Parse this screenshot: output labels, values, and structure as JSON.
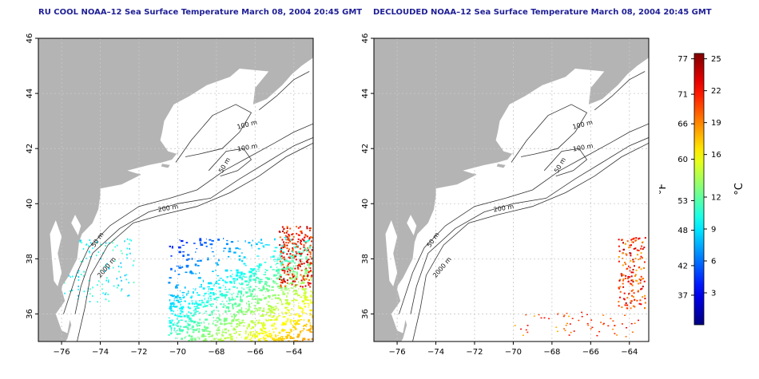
{
  "panels": [
    {
      "id": "left",
      "title": "RU COOL NOAA–12 Sea Surface Temperature March 08, 2004 20:45 GMT",
      "sst": "full"
    },
    {
      "id": "right",
      "title": "DECLOUDED NOAA–12 Sea Surface Temperature March 08, 2004 20:45 GMT",
      "sst": "sparse"
    }
  ],
  "axes": {
    "lon_ticks": [
      "−76",
      "−74",
      "−72",
      "−70",
      "−68",
      "−66",
      "−64"
    ],
    "lon_values": [
      -76,
      -74,
      -72,
      -70,
      -68,
      -66,
      -64
    ],
    "lat_ticks": [
      "36",
      "38",
      "40",
      "42",
      "44",
      "46"
    ],
    "lat_values": [
      36,
      38,
      40,
      42,
      44,
      46
    ],
    "lon_range": [
      -77.2,
      -63.0
    ],
    "lat_range": [
      35.0,
      46.0
    ]
  },
  "contour_labels": [
    "100 m",
    "100 m",
    "50 m",
    "200 m",
    "50 m",
    "2000 m"
  ],
  "colorbar": {
    "fahrenheit_label": "°F",
    "celsius_label": "°C",
    "fahrenheit_ticks": [
      "77",
      "71",
      "66",
      "60",
      "53",
      "48",
      "42",
      "37"
    ],
    "celsius_ticks": [
      "25",
      "22",
      "19",
      "16",
      "12",
      "9",
      "6",
      "3"
    ],
    "celsius_range": [
      0,
      25.5
    ]
  },
  "colors": {
    "land": "#b4b4b4",
    "grid": "#c8c8c8",
    "title": "#1e1e96",
    "contour": "#333333"
  }
}
